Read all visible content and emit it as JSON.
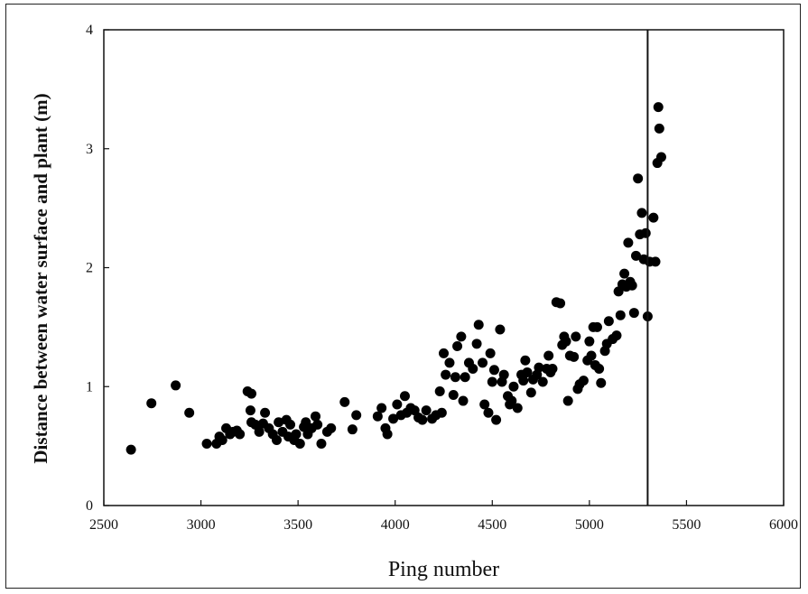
{
  "chart_data": {
    "type": "scatter",
    "title": "",
    "xlabel": "Ping number",
    "ylabel": "Distance between water surface and plant (m)",
    "xlim": [
      2500,
      6000
    ],
    "ylim": [
      0,
      4
    ],
    "xticks": [
      "2500",
      "3000",
      "3500",
      "4000",
      "4500",
      "5000",
      "5500",
      "6000"
    ],
    "yticks": [
      "0",
      "1",
      "2",
      "3",
      "4"
    ],
    "grid": false,
    "legend": "none",
    "vertical_line_x": 5300,
    "marker_color": "#000000",
    "points": [
      [
        2640,
        0.47
      ],
      [
        2745,
        0.86
      ],
      [
        2870,
        1.01
      ],
      [
        2940,
        0.78
      ],
      [
        3030,
        0.52
      ],
      [
        3080,
        0.52
      ],
      [
        3095,
        0.58
      ],
      [
        3110,
        0.55
      ],
      [
        3130,
        0.65
      ],
      [
        3150,
        0.6
      ],
      [
        3165,
        0.62
      ],
      [
        3185,
        0.63
      ],
      [
        3200,
        0.6
      ],
      [
        3240,
        0.96
      ],
      [
        3260,
        0.94
      ],
      [
        3255,
        0.8
      ],
      [
        3260,
        0.7
      ],
      [
        3280,
        0.68
      ],
      [
        3300,
        0.62
      ],
      [
        3320,
        0.69
      ],
      [
        3330,
        0.78
      ],
      [
        3350,
        0.65
      ],
      [
        3370,
        0.6
      ],
      [
        3390,
        0.55
      ],
      [
        3400,
        0.7
      ],
      [
        3420,
        0.62
      ],
      [
        3440,
        0.72
      ],
      [
        3450,
        0.58
      ],
      [
        3460,
        0.68
      ],
      [
        3480,
        0.55
      ],
      [
        3490,
        0.6
      ],
      [
        3510,
        0.52
      ],
      [
        3530,
        0.66
      ],
      [
        3540,
        0.7
      ],
      [
        3550,
        0.6
      ],
      [
        3570,
        0.65
      ],
      [
        3590,
        0.75
      ],
      [
        3600,
        0.68
      ],
      [
        3620,
        0.52
      ],
      [
        3650,
        0.62
      ],
      [
        3670,
        0.65
      ],
      [
        3740,
        0.87
      ],
      [
        3780,
        0.64
      ],
      [
        3800,
        0.76
      ],
      [
        3910,
        0.75
      ],
      [
        3930,
        0.82
      ],
      [
        3950,
        0.65
      ],
      [
        3960,
        0.6
      ],
      [
        3990,
        0.73
      ],
      [
        4010,
        0.85
      ],
      [
        4030,
        0.76
      ],
      [
        4050,
        0.92
      ],
      [
        4060,
        0.78
      ],
      [
        4080,
        0.82
      ],
      [
        4100,
        0.8
      ],
      [
        4120,
        0.74
      ],
      [
        4140,
        0.72
      ],
      [
        4160,
        0.8
      ],
      [
        4190,
        0.73
      ],
      [
        4210,
        0.76
      ],
      [
        4230,
        0.96
      ],
      [
        4240,
        0.78
      ],
      [
        4250,
        1.28
      ],
      [
        4260,
        1.1
      ],
      [
        4280,
        1.2
      ],
      [
        4300,
        0.93
      ],
      [
        4310,
        1.08
      ],
      [
        4320,
        1.34
      ],
      [
        4340,
        1.42
      ],
      [
        4350,
        0.88
      ],
      [
        4360,
        1.08
      ],
      [
        4380,
        1.2
      ],
      [
        4400,
        1.15
      ],
      [
        4420,
        1.36
      ],
      [
        4430,
        1.52
      ],
      [
        4450,
        1.2
      ],
      [
        4460,
        0.85
      ],
      [
        4480,
        0.78
      ],
      [
        4490,
        1.28
      ],
      [
        4500,
        1.04
      ],
      [
        4510,
        1.14
      ],
      [
        4520,
        0.72
      ],
      [
        4540,
        1.48
      ],
      [
        4550,
        1.04
      ],
      [
        4560,
        1.1
      ],
      [
        4580,
        0.92
      ],
      [
        4590,
        0.85
      ],
      [
        4600,
        0.88
      ],
      [
        4610,
        1.0
      ],
      [
        4630,
        0.82
      ],
      [
        4650,
        1.1
      ],
      [
        4660,
        1.05
      ],
      [
        4670,
        1.22
      ],
      [
        4680,
        1.12
      ],
      [
        4700,
        0.95
      ],
      [
        4710,
        1.06
      ],
      [
        4730,
        1.1
      ],
      [
        4740,
        1.16
      ],
      [
        4760,
        1.04
      ],
      [
        4780,
        1.15
      ],
      [
        4790,
        1.26
      ],
      [
        4800,
        1.12
      ],
      [
        4810,
        1.15
      ],
      [
        4830,
        1.71
      ],
      [
        4850,
        1.7
      ],
      [
        4860,
        1.35
      ],
      [
        4870,
        1.42
      ],
      [
        4880,
        1.38
      ],
      [
        4890,
        0.88
      ],
      [
        4900,
        1.26
      ],
      [
        4920,
        1.25
      ],
      [
        4930,
        1.42
      ],
      [
        4940,
        0.98
      ],
      [
        4950,
        1.02
      ],
      [
        4970,
        1.05
      ],
      [
        4990,
        1.22
      ],
      [
        5000,
        1.38
      ],
      [
        5010,
        1.26
      ],
      [
        5020,
        1.5
      ],
      [
        5030,
        1.18
      ],
      [
        5040,
        1.5
      ],
      [
        5050,
        1.15
      ],
      [
        5060,
        1.03
      ],
      [
        5080,
        1.3
      ],
      [
        5090,
        1.36
      ],
      [
        5100,
        1.55
      ],
      [
        5120,
        1.4
      ],
      [
        5140,
        1.43
      ],
      [
        5150,
        1.8
      ],
      [
        5160,
        1.6
      ],
      [
        5170,
        1.86
      ],
      [
        5180,
        1.95
      ],
      [
        5190,
        1.84
      ],
      [
        5200,
        2.21
      ],
      [
        5210,
        1.88
      ],
      [
        5220,
        1.85
      ],
      [
        5230,
        1.62
      ],
      [
        5240,
        2.1
      ],
      [
        5250,
        2.75
      ],
      [
        5260,
        2.28
      ],
      [
        5270,
        2.46
      ],
      [
        5280,
        2.07
      ],
      [
        5290,
        2.29
      ],
      [
        5300,
        1.59
      ],
      [
        5310,
        2.05
      ],
      [
        5330,
        2.42
      ],
      [
        5340,
        2.05
      ],
      [
        5350,
        2.88
      ],
      [
        5355,
        3.35
      ],
      [
        5360,
        3.17
      ],
      [
        5370,
        2.93
      ]
    ]
  }
}
